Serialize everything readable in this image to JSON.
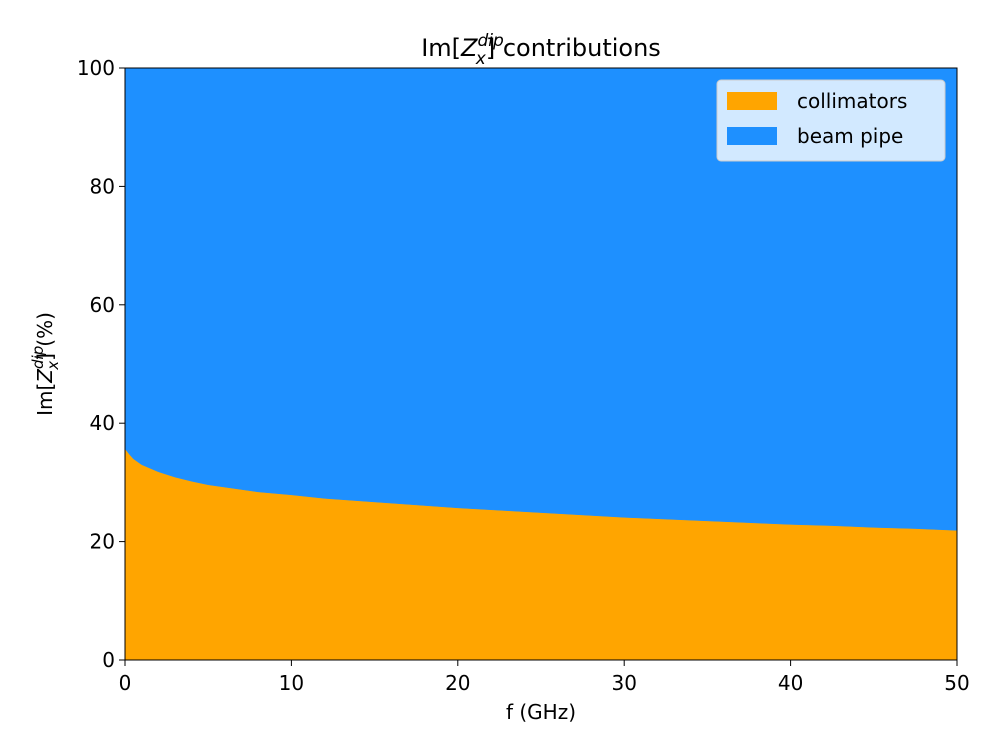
{
  "chart_data": {
    "type": "area",
    "stacked": true,
    "title": "Im[Z_x^dip] contributions",
    "title_parts": {
      "pre": "Im[",
      "var": "Z",
      "sub": "x",
      "sup": "dip",
      "post": "] contributions"
    },
    "xlabel": "f (GHz)",
    "ylabel": "Im[Z_x^dip] (%)",
    "ylabel_parts": {
      "pre": "Im[",
      "var": "Z",
      "sub": "x",
      "sup": "dip",
      "post": "] (%)"
    },
    "xlim": [
      0,
      50
    ],
    "ylim": [
      0,
      100
    ],
    "xticks": [
      "0",
      "10",
      "20",
      "30",
      "40",
      "50"
    ],
    "yticks": [
      "0",
      "20",
      "40",
      "60",
      "80",
      "100"
    ],
    "grid": false,
    "legend_placement": "top-right",
    "x": [
      0,
      0.25,
      0.5,
      1,
      2,
      3,
      4,
      5,
      6,
      8,
      10,
      12,
      15,
      17.5,
      20,
      22.5,
      25,
      27.5,
      30,
      32.5,
      35,
      37.5,
      40,
      42.5,
      45,
      47.5,
      50
    ],
    "series": [
      {
        "name": "collimators",
        "color": "#FFA500",
        "values": [
          35.7,
          34.8,
          34.0,
          33.0,
          31.8,
          30.9,
          30.2,
          29.6,
          29.2,
          28.4,
          27.9,
          27.3,
          26.7,
          26.2,
          25.7,
          25.3,
          24.9,
          24.5,
          24.1,
          23.8,
          23.5,
          23.2,
          22.9,
          22.7,
          22.4,
          22.2,
          21.9
        ]
      },
      {
        "name": "beam pipe",
        "color": "#1E90FF",
        "values": [
          64.3,
          65.2,
          66.0,
          67.0,
          68.2,
          69.1,
          69.8,
          70.4,
          70.8,
          71.6,
          72.1,
          72.7,
          73.3,
          73.8,
          74.3,
          74.7,
          75.1,
          75.5,
          75.9,
          76.2,
          76.5,
          76.8,
          77.1,
          77.3,
          77.6,
          77.8,
          78.1
        ]
      }
    ]
  }
}
